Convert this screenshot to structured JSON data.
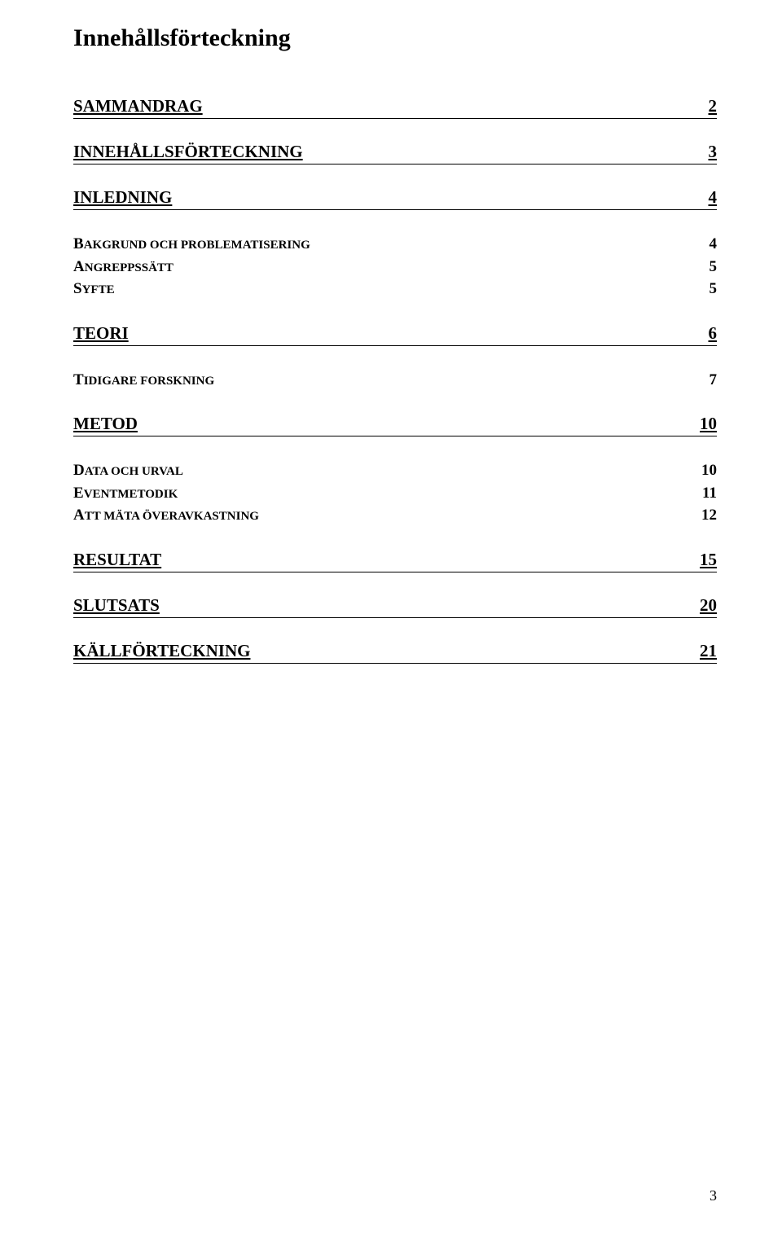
{
  "title": "Innehållsförteckning",
  "sections": {
    "sammandrag": {
      "label": "SAMMANDRAG",
      "page": "2"
    },
    "innehalls": {
      "label": "INNEHÅLLSFÖRTECKNING",
      "page": "3"
    },
    "inledning": {
      "label": "INLEDNING",
      "page": "4"
    },
    "teori": {
      "label": "TEORI",
      "page": "6"
    },
    "metod": {
      "label": "METOD",
      "page": "10"
    },
    "resultat": {
      "label": "RESULTAT",
      "page": "15"
    },
    "slutsats": {
      "label": "SLUTSATS",
      "page": "20"
    },
    "kallforteckning": {
      "label": "KÄLLFÖRTECKNING",
      "page": "21"
    }
  },
  "subs": {
    "bakgrund": {
      "first": "B",
      "rest": "AKGRUND OCH PROBLEMATISERING",
      "page": "4"
    },
    "angreppssatt": {
      "first": "A",
      "rest": "NGREPPSSÄTT",
      "page": "5"
    },
    "syfte": {
      "first": "S",
      "rest": "YFTE",
      "page": "5"
    },
    "tidigare": {
      "first": "T",
      "rest": "IDIGARE FORSKNING",
      "page": "7"
    },
    "data": {
      "first": "D",
      "rest": "ATA OCH URVAL",
      "page": "10"
    },
    "eventmetodik": {
      "first": "E",
      "rest": "VENTMETODIK",
      "page": "11"
    },
    "attmata": {
      "first": "A",
      "rest": "TT MÄTA ÖVERAVKASTNING",
      "page": "12"
    }
  },
  "pageNumber": "3"
}
